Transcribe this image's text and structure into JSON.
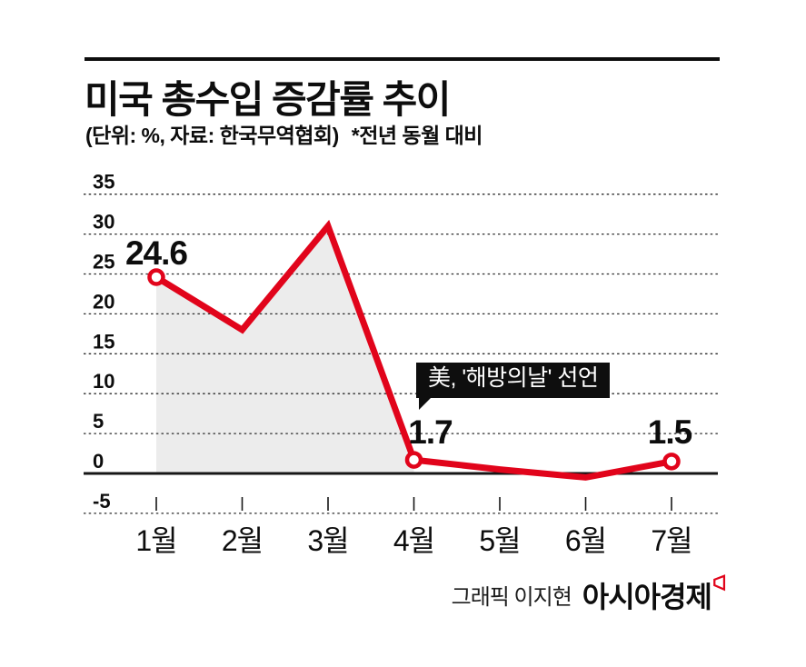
{
  "header": {
    "title": "미국 총수입 증감률 추이",
    "unit_note": "(단위: %, 자료: 한국무역협회)",
    "comparison_note": "*전년 동월 대비"
  },
  "chart_data": {
    "type": "line",
    "title": "미국 총수입 증감률 추이",
    "unit": "%",
    "source": "한국무역협회",
    "note": "전년 동월 대비",
    "categories": [
      "1월",
      "2월",
      "3월",
      "4월",
      "5월",
      "6월",
      "7월"
    ],
    "values": [
      24.6,
      18,
      31,
      1.7,
      0.5,
      -0.5,
      1.5
    ],
    "labeled_points": [
      {
        "index": 0,
        "label": "24.6"
      },
      {
        "index": 3,
        "label": "1.7"
      },
      {
        "index": 6,
        "label": "1.5"
      }
    ],
    "y_ticks": [
      35,
      30,
      25,
      20,
      15,
      10,
      5,
      0,
      -5
    ],
    "ylim": [
      -5,
      35
    ],
    "grid": "dotted-horizontal",
    "legend": "none",
    "annotation": {
      "text": "美, '해방의날' 선언",
      "target_category": "4월"
    },
    "colors": {
      "line": "#e1041b",
      "area": "#ececec",
      "axis": "#161616"
    }
  },
  "footer": {
    "credit": "그래픽 이지현",
    "brand": "아시아경제"
  }
}
